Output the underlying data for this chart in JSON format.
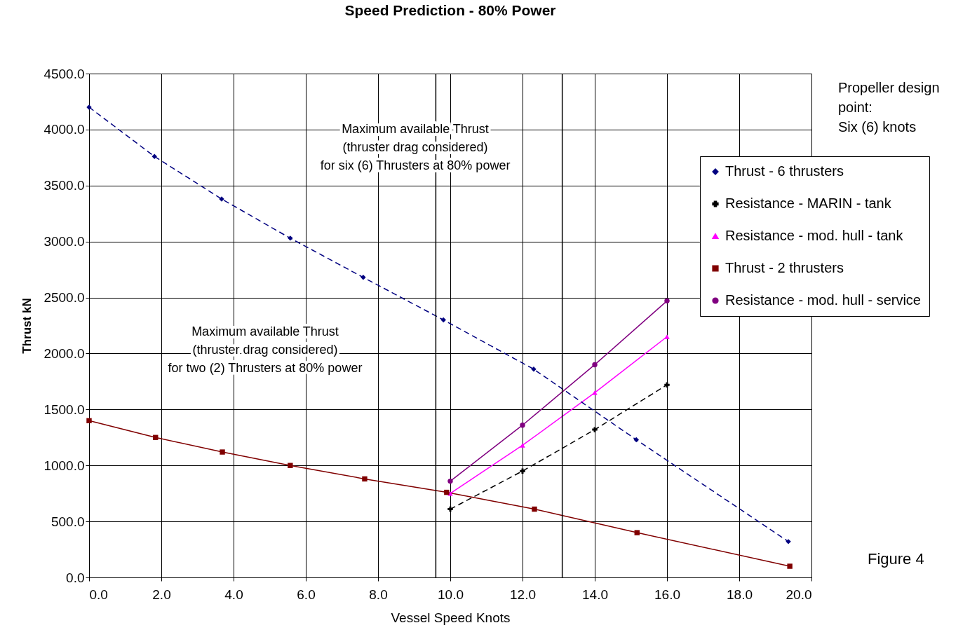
{
  "chart_data": {
    "type": "line",
    "title": "Speed Prediction - 80% Power",
    "xlabel": "Vessel Speed  Knots",
    "ylabel": "Thrust kN",
    "xlim": [
      0,
      20
    ],
    "ylim": [
      0,
      4500
    ],
    "xticks": [
      {
        "value": 0,
        "label": "0.0"
      },
      {
        "value": 2,
        "label": "2.0"
      },
      {
        "value": 4,
        "label": "4.0"
      },
      {
        "value": 6,
        "label": "6.0"
      },
      {
        "value": 8,
        "label": "8.0"
      },
      {
        "value": 10,
        "label": "10.0"
      },
      {
        "value": 12,
        "label": "12.0"
      },
      {
        "value": 14,
        "label": "14.0"
      },
      {
        "value": 16,
        "label": "16.0"
      },
      {
        "value": 18,
        "label": "18.0"
      },
      {
        "value": 20,
        "label": "20.0"
      }
    ],
    "yticks": [
      {
        "value": 0,
        "label": "0.0"
      },
      {
        "value": 500,
        "label": "500.0"
      },
      {
        "value": 1000,
        "label": "1000.0"
      },
      {
        "value": 1500,
        "label": "1500.0"
      },
      {
        "value": 2000,
        "label": "2000.0"
      },
      {
        "value": 2500,
        "label": "2500.0"
      },
      {
        "value": 3000,
        "label": "3000.0"
      },
      {
        "value": 3500,
        "label": "3500.0"
      },
      {
        "value": 4000,
        "label": "4000.0"
      },
      {
        "value": 4500,
        "label": "4500.0"
      }
    ],
    "grid": true,
    "legend": "right",
    "series": [
      {
        "name": "Thrust - 6 thrusters",
        "color": "#000080",
        "marker": "diamond",
        "line_style": "dashed",
        "x": [
          0,
          1.81,
          3.67,
          5.57,
          7.59,
          9.81,
          12.31,
          15.15,
          19.36
        ],
        "values": [
          4200,
          3760,
          3380,
          3030,
          2680,
          2300,
          1860,
          1230,
          320
        ]
      },
      {
        "name": "Resistance - MARIN - tank",
        "color": "#000000",
        "marker": "cross",
        "line_style": "dashed",
        "x": [
          10,
          12,
          14,
          16
        ],
        "values": [
          610,
          950,
          1320,
          1720
        ]
      },
      {
        "name": "Resistance - mod. hull - tank",
        "color": "#ff00ff",
        "marker": "triangle",
        "line_style": "solid",
        "x": [
          10,
          12,
          14,
          16
        ],
        "values": [
          750,
          1180,
          1650,
          2150
        ]
      },
      {
        "name": "Thrust - 2 thrusters",
        "color": "#800000",
        "marker": "square",
        "line_style": "solid",
        "x": [
          0,
          1.84,
          3.69,
          5.57,
          7.63,
          9.9,
          12.33,
          15.17,
          19.4
        ],
        "values": [
          1400,
          1250,
          1120,
          1000,
          880,
          760,
          610,
          400,
          100
        ]
      },
      {
        "name": "Resistance - mod. hull - service",
        "color": "#800080",
        "marker": "circle",
        "line_style": "solid",
        "x": [
          10,
          12,
          14,
          16
        ],
        "values": [
          860,
          1360,
          1900,
          2470
        ]
      }
    ],
    "ref_lines": [
      {
        "axis": "x",
        "value": 9.6,
        "color": "#000000"
      },
      {
        "axis": "x",
        "value": 13.1,
        "color": "#000000"
      }
    ],
    "annotations": [
      "Maximum available Thrust\n(thruster drag considered)\nfor six (6) Thrusters at 80% power",
      "Maximum available Thrust\n(thruster drag considered)\nfor two (2) Thrusters at 80% power",
      "Propeller design\npoint:\nSix (6) knots",
      "Figure 4"
    ]
  }
}
